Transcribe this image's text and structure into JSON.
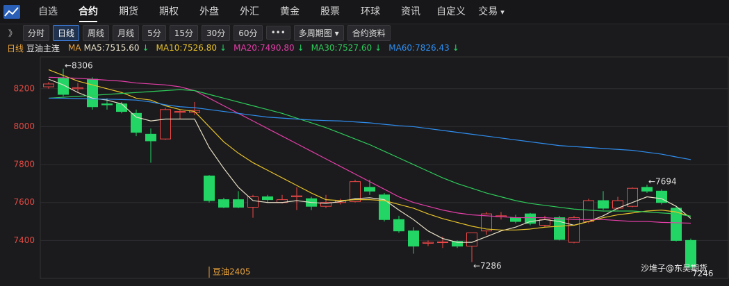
{
  "nav": {
    "tabs": [
      "自选",
      "合约",
      "期货",
      "期权",
      "外盘",
      "外汇",
      "黄金",
      "股票",
      "环球",
      "资讯",
      "自定义",
      "交易"
    ],
    "active": 1,
    "dropdown": "▾"
  },
  "toolbar": {
    "expand": "》",
    "buttons": [
      "分时",
      "日线",
      "周线",
      "月线",
      "5分",
      "15分",
      "30分",
      "60分",
      "•••",
      "多周期图 ▾",
      "合约资料"
    ],
    "active": 1
  },
  "legend": {
    "period": "日线",
    "symbol": "豆油主连",
    "ma_label": "MA"
  },
  "chart_data": {
    "type": "candlestick",
    "open": [
      8210,
      8255,
      8200,
      8250,
      8120,
      8120,
      8070,
      7960,
      7935,
      8075,
      8075,
      7740,
      7615,
      7615,
      7575,
      7630,
      7600,
      7630,
      7620,
      7580,
      7600,
      7605,
      7680,
      7640,
      7510,
      7450,
      7385,
      7390,
      7395,
      7370,
      7450,
      7525,
      7520,
      7540,
      7480,
      7520,
      7390,
      7500,
      7610,
      7570,
      7580,
      7680,
      7660,
      7570,
      7400
    ],
    "high": [
      8235,
      8306,
      8230,
      8260,
      8150,
      8130,
      8090,
      7990,
      8100,
      8090,
      8130,
      7745,
      7625,
      7660,
      7640,
      7640,
      7640,
      7680,
      7630,
      7640,
      7620,
      7720,
      7720,
      7650,
      7530,
      7470,
      7400,
      7420,
      7400,
      7440,
      7550,
      7550,
      7535,
      7545,
      7530,
      7530,
      7530,
      7620,
      7660,
      7630,
      7680,
      7694,
      7670,
      7580,
      7410
    ],
    "low": [
      8200,
      8160,
      8180,
      8090,
      8090,
      8070,
      7950,
      7810,
      7930,
      8040,
      8060,
      7600,
      7570,
      7570,
      7520,
      7600,
      7595,
      7560,
      7560,
      7570,
      7590,
      7600,
      7640,
      7500,
      7440,
      7330,
      7370,
      7360,
      7360,
      7286,
      7430,
      7510,
      7490,
      7480,
      7470,
      7400,
      7385,
      7490,
      7560,
      7560,
      7575,
      7650,
      7590,
      7395,
      7246
    ],
    "close": [
      8225,
      8170,
      8205,
      8105,
      8115,
      8080,
      7970,
      7925,
      8090,
      8080,
      8085,
      7610,
      7575,
      7575,
      7630,
      7615,
      7615,
      7635,
      7580,
      7600,
      7610,
      7710,
      7660,
      7510,
      7450,
      7370,
      7390,
      7392,
      7370,
      7440,
      7540,
      7530,
      7500,
      7490,
      7510,
      7405,
      7520,
      7610,
      7570,
      7610,
      7675,
      7660,
      7600,
      7400,
      7260
    ],
    "up_color": "#f04848",
    "down_color": "#22d564",
    "series": [
      {
        "name": "MA5:7515.60",
        "arrow": "↓",
        "color": "#e8e0c8",
        "values": [
          8250,
          8220,
          8180,
          8150,
          8140,
          8120,
          8050,
          8030,
          8040,
          8040,
          8040,
          7890,
          7780,
          7680,
          7610,
          7600,
          7600,
          7610,
          7600,
          7595,
          7605,
          7620,
          7625,
          7615,
          7560,
          7510,
          7450,
          7410,
          7390,
          7390,
          7420,
          7450,
          7470,
          7500,
          7510,
          7500,
          7480,
          7500,
          7530,
          7570,
          7600,
          7630,
          7620,
          7580,
          7516
        ]
      },
      {
        "name": "MA10:7526.80",
        "arrow": "↓",
        "color": "#e8c22a",
        "values": [
          8300,
          8270,
          8240,
          8220,
          8200,
          8180,
          8150,
          8140,
          8110,
          8090,
          8080,
          8000,
          7920,
          7860,
          7810,
          7770,
          7730,
          7690,
          7650,
          7615,
          7610,
          7615,
          7615,
          7610,
          7590,
          7570,
          7540,
          7515,
          7495,
          7475,
          7460,
          7455,
          7455,
          7460,
          7470,
          7475,
          7480,
          7500,
          7520,
          7535,
          7545,
          7555,
          7560,
          7550,
          7527
        ]
      },
      {
        "name": "MA20:7490.80",
        "arrow": "↓",
        "color": "#e43ea8",
        "values": [
          8260,
          8258,
          8255,
          8250,
          8245,
          8240,
          8230,
          8225,
          8220,
          8210,
          8190,
          8150,
          8110,
          8070,
          8030,
          7990,
          7950,
          7910,
          7870,
          7830,
          7790,
          7750,
          7710,
          7670,
          7630,
          7600,
          7580,
          7560,
          7545,
          7535,
          7530,
          7525,
          7520,
          7520,
          7520,
          7515,
          7510,
          7510,
          7510,
          7505,
          7500,
          7500,
          7495,
          7493,
          7491
        ]
      },
      {
        "name": "MA30:7527.60",
        "arrow": "↓",
        "color": "#2ecc5a",
        "values": [
          8150,
          8155,
          8160,
          8165,
          8170,
          8175,
          8180,
          8185,
          8190,
          8195,
          8190,
          8170,
          8150,
          8130,
          8110,
          8090,
          8070,
          8045,
          8020,
          7995,
          7965,
          7935,
          7905,
          7870,
          7835,
          7800,
          7765,
          7730,
          7700,
          7675,
          7650,
          7630,
          7610,
          7595,
          7585,
          7575,
          7565,
          7560,
          7555,
          7555,
          7555,
          7550,
          7545,
          7540,
          7528
        ]
      },
      {
        "name": "MA60:7826.43",
        "arrow": "↓",
        "color": "#2f8ef0",
        "values": [
          8150,
          8150,
          8148,
          8146,
          8145,
          8143,
          8140,
          8130,
          8115,
          8105,
          8100,
          8090,
          8080,
          8070,
          8060,
          8050,
          8045,
          8040,
          8035,
          8032,
          8030,
          8025,
          8020,
          8012,
          8005,
          8000,
          7990,
          7980,
          7970,
          7960,
          7950,
          7940,
          7930,
          7920,
          7910,
          7900,
          7895,
          7890,
          7885,
          7880,
          7875,
          7865,
          7855,
          7840,
          7826
        ]
      }
    ],
    "ylim": [
      7200,
      8320
    ],
    "yticks": [
      7400,
      7600,
      7800,
      8000,
      8200
    ],
    "grid": true,
    "annotations": [
      {
        "label": "←8306",
        "value": 8306
      },
      {
        "label": "←7286",
        "value": 7286
      },
      {
        "label": "←7694",
        "value": 7694
      },
      {
        "label": "7246",
        "value": 7246
      }
    ],
    "contract": "豆油2405",
    "watermark": "沙堆子@东吴期货"
  }
}
